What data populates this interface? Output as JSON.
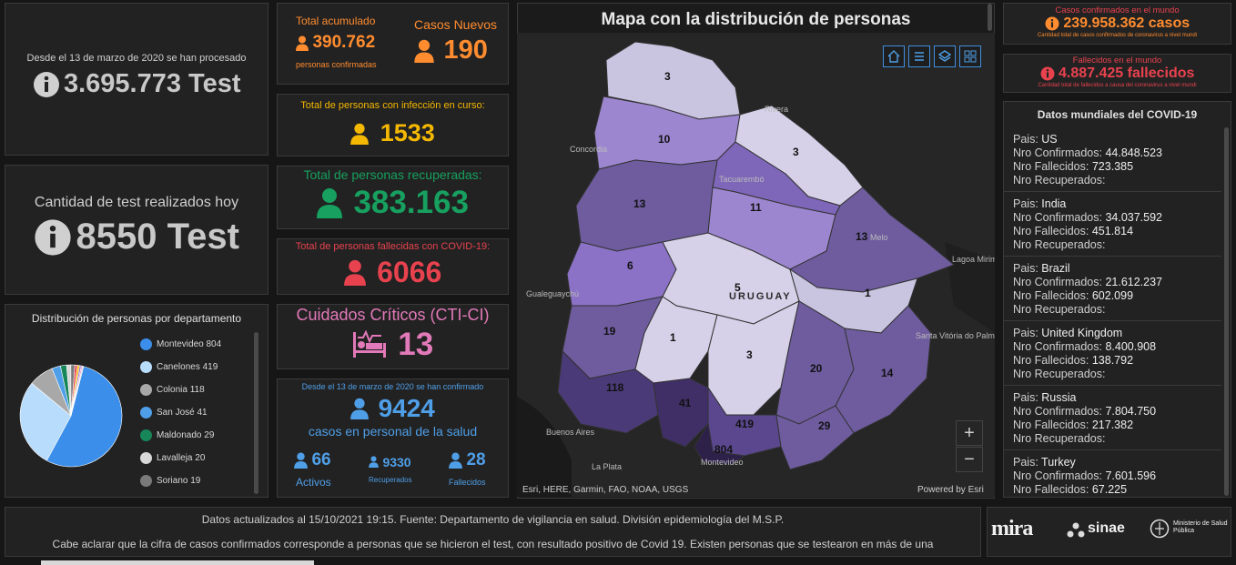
{
  "tests": {
    "processed_caption": "Desde el 13 de marzo de 2020 se han procesado",
    "processed_value": "3.695.773 Test",
    "today_caption": "Cantidad de test realizados hoy",
    "today_value": "8550 Test"
  },
  "distribution": {
    "title": "Distribución de personas por departamento",
    "items": [
      {
        "label": "Montevideo",
        "value": "804",
        "color": "#3b8fea"
      },
      {
        "label": "Canelones",
        "value": "419",
        "color": "#b8dcfb"
      },
      {
        "label": "Colonia",
        "value": "118",
        "color": "#a8a8a8"
      },
      {
        "label": "San José",
        "value": "41",
        "color": "#4f9fe8"
      },
      {
        "label": "Maldonado",
        "value": "29",
        "color": "#17875a"
      },
      {
        "label": "Lavalleja",
        "value": "20",
        "color": "#d8d8d8"
      },
      {
        "label": "Soriano",
        "value": "19",
        "color": "#7a7a7a"
      }
    ]
  },
  "cards": {
    "total_label": "Total acumulado",
    "total_value": "390.762",
    "total_sub": "personas confirmadas",
    "new_label": "Casos Nuevos",
    "new_value": "190",
    "active_label": "Total de personas con infección en curso:",
    "active_value": "1533",
    "recovered_label": "Total de personas recuperadas:",
    "recovered_value": "383.163",
    "deceased_label": "Total de personas fallecidas con COVID-19:",
    "deceased_value": "6066",
    "critical_label": "Cuidados Críticos (CTI-CI)",
    "critical_value": "13",
    "health_caption": "Desde el 13 de marzo de 2020 se han confirmado",
    "health_value": "9424",
    "health_sub": "casos en personal de la salud",
    "health_active_value": "66",
    "health_active_label": "Activos",
    "health_recovered_value": "9330",
    "health_recovered_label": "Recuperados",
    "health_deceased_value": "28",
    "health_deceased_label": "Fallecidos"
  },
  "map": {
    "title": "Mapa con la distribución de personas",
    "country": "URUGUAY",
    "attribution": "Esri, HERE, Garmin, FAO, NOAA, USGS",
    "powered": "Powered by Esri",
    "zoom_in": "+",
    "zoom_out": "−",
    "departments": [
      "3",
      "10",
      "3",
      "11",
      "13",
      "13",
      "6",
      "5",
      "1",
      "19",
      "1",
      "3",
      "20",
      "14",
      "118",
      "41",
      "419",
      "29",
      "804"
    ],
    "places": [
      "Concordia",
      "Rivera",
      "Tacuarembó",
      "Melo",
      "Gualeguaychú",
      "Buenos Aires",
      "La Plata",
      "Montevideo",
      "Santa Vitória do Palmar",
      "Lagoa Mirim"
    ]
  },
  "world": {
    "confirmed_title": "Casos confirmados en el mundo",
    "confirmed_value": "239.958.362 casos",
    "confirmed_caption": "Cantidad total de casos confirmados de coronavirus a nivel mundi",
    "deaths_title": "Fallecidos en el mundo",
    "deaths_value": "4.887.425 fallecidos",
    "deaths_caption": "Cantidad total de fallecidos a causa del coronavirus a nivel mundi",
    "list_title": "Datos mundiales del COVID-19",
    "country_label": "Pais: ",
    "confirmed_row_label": "Nro Confirmados: ",
    "deaths_row_label": "Nro Fallecidos: ",
    "recovered_row_label": "Nro Recuperados:",
    "countries": [
      {
        "name": "US",
        "confirmed": "44.848.523",
        "deaths": "723.385"
      },
      {
        "name": "India",
        "confirmed": "34.037.592",
        "deaths": "451.814"
      },
      {
        "name": "Brazil",
        "confirmed": "21.612.237",
        "deaths": "602.099"
      },
      {
        "name": "United Kingdom",
        "confirmed": "8.400.908",
        "deaths": "138.792"
      },
      {
        "name": "Russia",
        "confirmed": "7.804.750",
        "deaths": "217.382"
      },
      {
        "name": "Turkey",
        "confirmed": "7.601.596",
        "deaths": "67.225"
      }
    ]
  },
  "footer": {
    "line1": "Datos actualizados al 15/10/2021 19:15. Fuente: Departamento de vigilancia en salud. División epidemiología del M.S.P.",
    "line2": "Cabe aclarar que la cifra de casos confirmados corresponde a personas que se hicieron el test, con resultado positivo de Covid 19. Existen personas que se testearon en más de una",
    "logo1": "mira",
    "logo2": "sinae",
    "logo3": "Ministerio de Salud Pública"
  },
  "colors": {
    "orange": "#ff8c2f",
    "yellow": "#f5b800",
    "green": "#17a05f",
    "red": "#e8424e",
    "pink": "#e279b9",
    "blue": "#4f9fe8"
  }
}
